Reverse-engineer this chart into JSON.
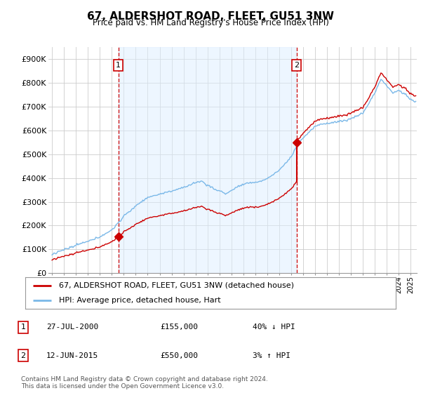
{
  "title": "67, ALDERSHOT ROAD, FLEET, GU51 3NW",
  "subtitle": "Price paid vs. HM Land Registry's House Price Index (HPI)",
  "title_fontsize": 11,
  "subtitle_fontsize": 9,
  "ylim": [
    0,
    950000
  ],
  "yticks": [
    0,
    100000,
    200000,
    300000,
    400000,
    500000,
    600000,
    700000,
    800000,
    900000
  ],
  "ytick_labels": [
    "£0",
    "£100K",
    "£200K",
    "£300K",
    "£400K",
    "£500K",
    "£600K",
    "£700K",
    "£800K",
    "£900K"
  ],
  "xlim_start": 1994.7,
  "xlim_end": 2025.5,
  "hpi_color": "#7ab8e8",
  "hpi_fill_color": "#ddeeff",
  "price_color": "#cc0000",
  "vline_color": "#cc0000",
  "grid_color": "#cccccc",
  "bg_color": "#ffffff",
  "transaction_1": {
    "date_num": 2000.55,
    "price": 155000,
    "label": "1",
    "date_str": "27-JUL-2000",
    "price_str": "£155,000",
    "hpi_str": "40% ↓ HPI"
  },
  "transaction_2": {
    "date_num": 2015.44,
    "price": 550000,
    "label": "2",
    "date_str": "12-JUN-2015",
    "price_str": "£550,000",
    "hpi_str": "3% ↑ HPI"
  },
  "legend_line1": "67, ALDERSHOT ROAD, FLEET, GU51 3NW (detached house)",
  "legend_line2": "HPI: Average price, detached house, Hart",
  "footer1": "Contains HM Land Registry data © Crown copyright and database right 2024.",
  "footer2": "This data is licensed under the Open Government Licence v3.0.",
  "note1_label": "1",
  "note1_date": "27-JUL-2000",
  "note1_price": "£155,000",
  "note1_hpi": "40% ↓ HPI",
  "note2_label": "2",
  "note2_date": "12-JUN-2015",
  "note2_price": "£550,000",
  "note2_hpi": "3% ↑ HPI"
}
